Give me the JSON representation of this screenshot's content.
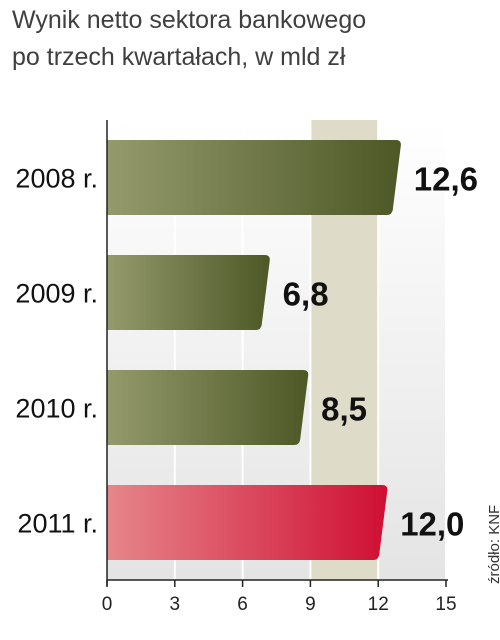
{
  "chart_data": {
    "type": "bar",
    "orientation": "horizontal",
    "title": "Wynik netto sektora bankowego",
    "subtitle": "po trzech kwartałach, w mld zł",
    "categories": [
      "2008 r.",
      "2009 r.",
      "2010 r.",
      "2011 r."
    ],
    "values": [
      12.6,
      6.8,
      8.5,
      12.0
    ],
    "value_labels": [
      "12,6",
      "6,8",
      "8,5",
      "12,0"
    ],
    "xlim": [
      0,
      15
    ],
    "xticks": [
      0,
      3,
      6,
      9,
      12,
      15
    ],
    "xtick_labels": [
      "0",
      "3",
      "6",
      "9",
      "12",
      "15"
    ],
    "grid": true,
    "source": "źródło: KNF",
    "colors": {
      "bar_default": "#5f6a32",
      "bar_highlight": "#d0213c",
      "band_light": "#ececec",
      "band_tint": "#dedcc9"
    },
    "highlight_index": 3
  }
}
